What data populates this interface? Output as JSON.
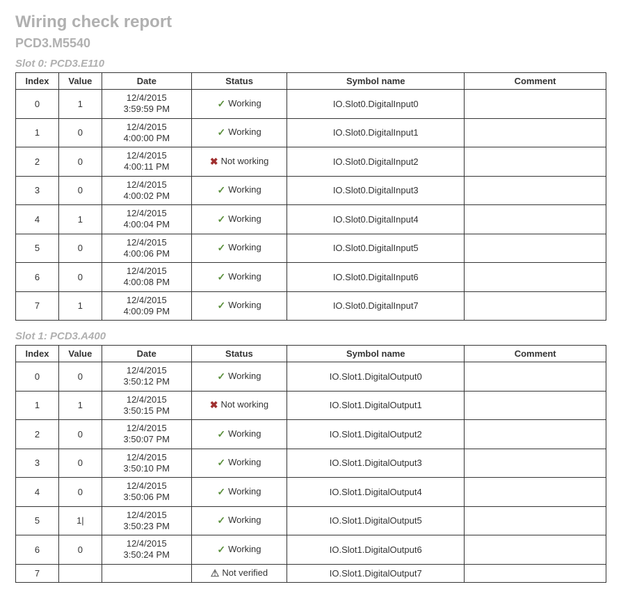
{
  "title": "Wiring check report",
  "device": "PCD3.M5540",
  "columns": [
    "Index",
    "Value",
    "Date",
    "Status",
    "Symbol name",
    "Comment"
  ],
  "status_labels": {
    "ok": "Working",
    "bad": "Not working",
    "warn": "Not verified"
  },
  "icons": {
    "ok": "✓",
    "bad": "✖",
    "warn": "⚠"
  },
  "colors": {
    "heading": "#b0b0b0",
    "border": "#333333",
    "text": "#333333",
    "ok": "#5a8f3c",
    "bad": "#a03030",
    "warn": "#666666",
    "background": "#ffffff"
  },
  "slots": [
    {
      "heading": "Slot 0: PCD3.E110",
      "rows": [
        {
          "index": "0",
          "value": "1",
          "date1": "12/4/2015",
          "date2": "3:59:59 PM",
          "status": "ok",
          "symbol": "IO.Slot0.DigitalInput0",
          "comment": ""
        },
        {
          "index": "1",
          "value": "0",
          "date1": "12/4/2015",
          "date2": "4:00:00 PM",
          "status": "ok",
          "symbol": "IO.Slot0.DigitalInput1",
          "comment": ""
        },
        {
          "index": "2",
          "value": "0",
          "date1": "12/4/2015",
          "date2": "4:00:11 PM",
          "status": "bad",
          "symbol": "IO.Slot0.DigitalInput2",
          "comment": ""
        },
        {
          "index": "3",
          "value": "0",
          "date1": "12/4/2015",
          "date2": "4:00:02 PM",
          "status": "ok",
          "symbol": "IO.Slot0.DigitalInput3",
          "comment": ""
        },
        {
          "index": "4",
          "value": "1",
          "date1": "12/4/2015",
          "date2": "4:00:04 PM",
          "status": "ok",
          "symbol": "IO.Slot0.DigitalInput4",
          "comment": ""
        },
        {
          "index": "5",
          "value": "0",
          "date1": "12/4/2015",
          "date2": "4:00:06 PM",
          "status": "ok",
          "symbol": "IO.Slot0.DigitalInput5",
          "comment": ""
        },
        {
          "index": "6",
          "value": "0",
          "date1": "12/4/2015",
          "date2": "4:00:08 PM",
          "status": "ok",
          "symbol": "IO.Slot0.DigitalInput6",
          "comment": ""
        },
        {
          "index": "7",
          "value": "1",
          "date1": "12/4/2015",
          "date2": "4:00:09 PM",
          "status": "ok",
          "symbol": "IO.Slot0.DigitalInput7",
          "comment": ""
        }
      ]
    },
    {
      "heading": "Slot 1: PCD3.A400",
      "rows": [
        {
          "index": "0",
          "value": "0",
          "date1": "12/4/2015",
          "date2": "3:50:12 PM",
          "status": "ok",
          "symbol": "IO.Slot1.DigitalOutput0",
          "comment": ""
        },
        {
          "index": "1",
          "value": "1",
          "date1": "12/4/2015",
          "date2": "3:50:15 PM",
          "status": "bad",
          "symbol": "IO.Slot1.DigitalOutput1",
          "comment": ""
        },
        {
          "index": "2",
          "value": "0",
          "date1": "12/4/2015",
          "date2": "3:50:07 PM",
          "status": "ok",
          "symbol": "IO.Slot1.DigitalOutput2",
          "comment": ""
        },
        {
          "index": "3",
          "value": "0",
          "date1": "12/4/2015",
          "date2": "3:50:10 PM",
          "status": "ok",
          "symbol": "IO.Slot1.DigitalOutput3",
          "comment": ""
        },
        {
          "index": "4",
          "value": "0",
          "date1": "12/4/2015",
          "date2": "3:50:06 PM",
          "status": "ok",
          "symbol": "IO.Slot1.DigitalOutput4",
          "comment": ""
        },
        {
          "index": "5",
          "value": "1|",
          "date1": "12/4/2015",
          "date2": "3:50:23 PM",
          "status": "ok",
          "symbol": "IO.Slot1.DigitalOutput5",
          "comment": ""
        },
        {
          "index": "6",
          "value": "0",
          "date1": "12/4/2015",
          "date2": "3:50:24 PM",
          "status": "ok",
          "symbol": "IO.Slot1.DigitalOutput6",
          "comment": ""
        },
        {
          "index": "7",
          "value": "",
          "date1": "",
          "date2": "",
          "status": "warn",
          "symbol": "IO.Slot1.DigitalOutput7",
          "comment": ""
        }
      ]
    }
  ]
}
